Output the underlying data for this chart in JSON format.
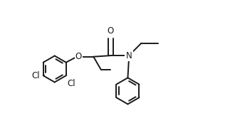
{
  "bg_color": "#ffffff",
  "line_color": "#1a1a1a",
  "line_width": 1.4,
  "font_size": 8.5,
  "figsize": [
    3.3,
    1.94
  ],
  "dpi": 100,
  "xlim": [
    0.0,
    9.5
  ],
  "ylim": [
    -1.5,
    4.5
  ]
}
